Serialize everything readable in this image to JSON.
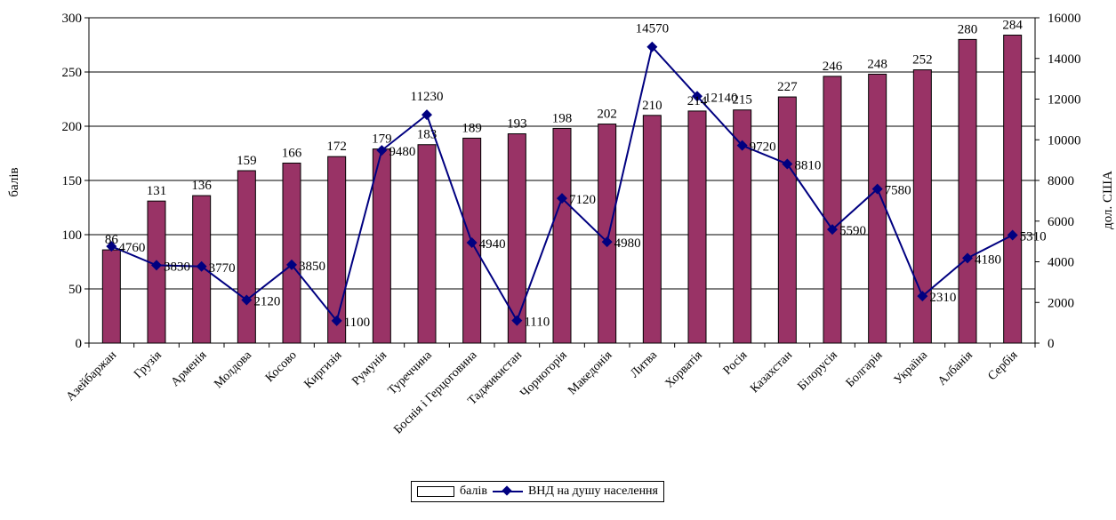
{
  "chart_data": {
    "type": "bar+line",
    "categories": [
      "Азейбаржан",
      "Грузія",
      "Арменія",
      "Молдова",
      "Косово",
      "Киргизія",
      "Румунія",
      "Туреччина",
      "Боснія і Герцоговина",
      "Таджикистан",
      "Чорногорія",
      "Македонія",
      "Литва",
      "Хорватія",
      "Росія",
      "Казахстан",
      "Білорусія",
      "Болгарія",
      "Україна",
      "Албанія",
      "Сербія"
    ],
    "series": [
      {
        "name": "балів",
        "type": "bar",
        "axis": "left",
        "values": [
          86,
          131,
          136,
          159,
          166,
          172,
          179,
          183,
          189,
          193,
          198,
          202,
          210,
          214,
          215,
          227,
          246,
          248,
          252,
          280,
          284
        ]
      },
      {
        "name": "ВНД на душу населення",
        "type": "line",
        "axis": "right",
        "values": [
          4760,
          3830,
          3770,
          2120,
          3850,
          1100,
          9480,
          11230,
          4940,
          1110,
          7120,
          4980,
          14570,
          12140,
          9720,
          8810,
          5590,
          7580,
          2310,
          4180,
          5310
        ]
      }
    ],
    "bar_labels": [
      "86",
      "131",
      "136",
      "159",
      "166",
      "172",
      "179",
      "183",
      "189",
      "193",
      "198",
      "202",
      "210",
      "214",
      "215",
      "227",
      "246",
      "248",
      "252",
      "280",
      "284"
    ],
    "line_labels": [
      "4760",
      "3830",
      "3770",
      "2120",
      "3850",
      "1100",
      "9480",
      "11230",
      "4940",
      "1110",
      "7120",
      "4980",
      "14570",
      "12140",
      "9720",
      "8810",
      "5590",
      "7580",
      "2310",
      "4180",
      "5310"
    ],
    "ylabel": "балів",
    "y2label": "дол. США",
    "ylim": [
      0,
      300
    ],
    "y2lim": [
      0,
      16000
    ],
    "yticks": [
      0,
      50,
      100,
      150,
      200,
      250,
      300
    ],
    "y2ticks": [
      0,
      2000,
      4000,
      6000,
      8000,
      10000,
      12000,
      14000,
      16000
    ],
    "grid": true,
    "legend_position": "bottom",
    "colors": {
      "bar": "#993366",
      "line": "#000080",
      "grid": "#000000"
    }
  },
  "legend": {
    "bar_label": "балів",
    "line_label": "ВНД на душу населення"
  }
}
